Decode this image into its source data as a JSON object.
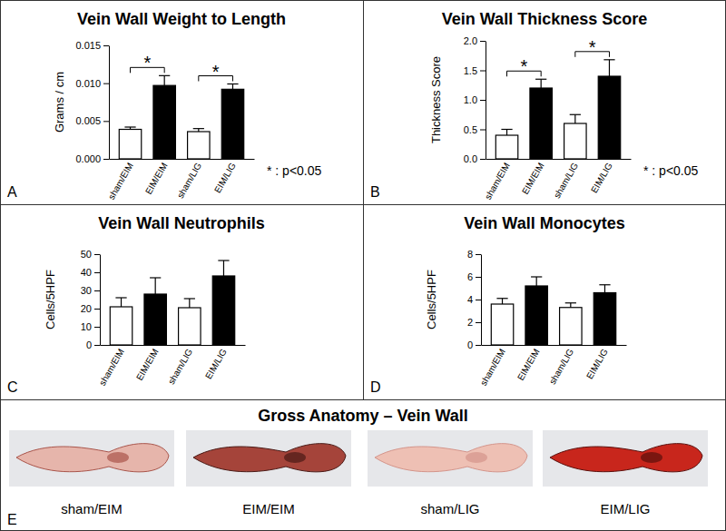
{
  "chart_data": [
    {
      "type": "bar",
      "title": "Vein Wall Weight to Length",
      "y_label": "Grams / cm",
      "categories": [
        "sham/EIM",
        "EIM/EIM",
        "sham/LIG",
        "EIM/LIG"
      ],
      "values": [
        0.0039,
        0.0097,
        0.0036,
        0.0092
      ],
      "errors": [
        0.0003,
        0.0013,
        0.0004,
        0.0007
      ],
      "colors": [
        "#ffffff",
        "#000000",
        "#ffffff",
        "#000000"
      ],
      "ylim": [
        0,
        0.015
      ],
      "yticks": [
        {
          "value": 0,
          "label": "0.000"
        },
        {
          "value": 0.005,
          "label": "0.005"
        },
        {
          "value": 0.01,
          "label": "0.010"
        },
        {
          "value": 0.015,
          "label": "0.015"
        }
      ],
      "significance": [
        {
          "pair": [
            "sham/EIM",
            "EIM/EIM"
          ],
          "label": "*"
        },
        {
          "pair": [
            "sham/LIG",
            "EIM/LIG"
          ],
          "label": "*"
        }
      ],
      "annotations": [
        {
          "text": "A",
          "position": "bottom-left"
        },
        {
          "text": "* : p<0.05",
          "position": "bottom-right"
        }
      ]
    },
    {
      "type": "bar",
      "title": "Vein Wall Thickness Score",
      "y_label": "Thickness Score",
      "categories": [
        "sham/EIM",
        "EIM/EIM",
        "sham/LIG",
        "EIM/LIG"
      ],
      "values": [
        0.4,
        1.2,
        0.6,
        1.4
      ],
      "errors": [
        0.1,
        0.15,
        0.15,
        0.28
      ],
      "colors": [
        "#ffffff",
        "#000000",
        "#ffffff",
        "#000000"
      ],
      "ylim": [
        0,
        2
      ],
      "yticks": [
        {
          "value": 0,
          "label": "0.0"
        },
        {
          "value": 0.5,
          "label": "0.5"
        },
        {
          "value": 1,
          "label": "1.0"
        },
        {
          "value": 1.5,
          "label": "1.5"
        },
        {
          "value": 2,
          "label": "2.0"
        }
      ],
      "significance": [
        {
          "pair": [
            "sham/EIM",
            "EIM/EIM"
          ],
          "label": "*"
        },
        {
          "pair": [
            "sham/LIG",
            "EIM/LIG"
          ],
          "label": "*"
        }
      ],
      "annotations": [
        {
          "text": "B",
          "position": "bottom-left"
        },
        {
          "text": "* : p<0.05",
          "position": "bottom-right"
        }
      ]
    },
    {
      "type": "bar",
      "title": "Vein Wall Neutrophils",
      "y_label": "Cells/5HPF",
      "categories": [
        "sham/EIM",
        "EIM/EIM",
        "sham/LIG",
        "EIM/LIG"
      ],
      "values": [
        21,
        28,
        20.5,
        38
      ],
      "errors": [
        5,
        9,
        5,
        8.5
      ],
      "colors": [
        "#ffffff",
        "#000000",
        "#ffffff",
        "#000000"
      ],
      "ylim": [
        0,
        50
      ],
      "yticks": [
        0,
        10,
        20,
        30,
        40,
        50
      ],
      "annotations": [
        {
          "text": "C",
          "position": "bottom-left"
        }
      ]
    },
    {
      "type": "bar",
      "title": "Vein Wall Monocytes",
      "y_label": "Cells/5HPF",
      "categories": [
        "sham/EIM",
        "EIM/EIM",
        "sham/LIG",
        "EIM/LIG"
      ],
      "values": [
        3.6,
        5.2,
        3.3,
        4.6
      ],
      "errors": [
        0.5,
        0.8,
        0.4,
        0.7
      ],
      "colors": [
        "#ffffff",
        "#000000",
        "#ffffff",
        "#000000"
      ],
      "ylim": [
        0,
        8
      ],
      "yticks": [
        0,
        2,
        4,
        6,
        8
      ],
      "annotations": [
        {
          "text": "D",
          "position": "bottom-left"
        }
      ]
    }
  ],
  "gross_anatomy": {
    "title": "Gross Anatomy – Vein Wall",
    "labels": [
      "sham/EIM",
      "EIM/EIM",
      "sham/LIG",
      "EIM/LIG"
    ],
    "annotations": [
      {
        "text": "E",
        "position": "bottom-left"
      }
    ]
  }
}
